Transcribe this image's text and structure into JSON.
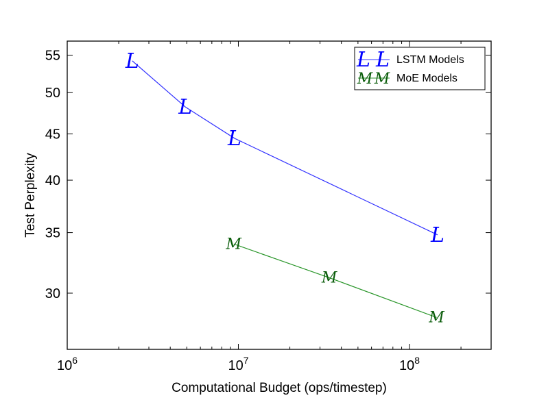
{
  "chart_data": {
    "type": "line",
    "title": "",
    "xlabel": "Computational Budget (ops/timestep)",
    "ylabel": "Test Perplexity",
    "xscale": "log",
    "yscale": "log",
    "xlim": [
      1000000,
      300000000
    ],
    "ylim": [
      26,
      57
    ],
    "x_ticks": [
      {
        "value": 1000000,
        "base": "10",
        "exp": "6"
      },
      {
        "value": 10000000,
        "base": "10",
        "exp": "7"
      },
      {
        "value": 100000000,
        "base": "10",
        "exp": "8"
      }
    ],
    "y_ticks": [
      {
        "value": 30,
        "label": "30"
      },
      {
        "value": 35,
        "label": "35"
      },
      {
        "value": 40,
        "label": "40"
      },
      {
        "value": 45,
        "label": "45"
      },
      {
        "value": 50,
        "label": "50"
      },
      {
        "value": 55,
        "label": "55"
      }
    ],
    "grid": false,
    "legend": "top-right",
    "series": [
      {
        "name": "LSTM Models",
        "marker": "L",
        "color": "#0000ff",
        "line_color": "#3333ff",
        "x": [
          2400000,
          4900000,
          9500000,
          146000000
        ],
        "y": [
          54.2,
          48.2,
          44.5,
          34.8
        ]
      },
      {
        "name": "MoE Models",
        "marker": "M",
        "color": "#0a5c0a",
        "line_color": "#2a962a",
        "x": [
          9400000,
          34000000,
          144000000
        ],
        "y": [
          34.0,
          31.2,
          28.2
        ]
      }
    ]
  }
}
